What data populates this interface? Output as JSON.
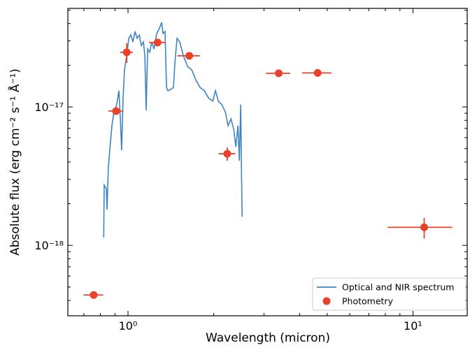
{
  "chart_data": {
    "type": "combo",
    "xlabel": "Wavelength (micron)",
    "ylabel": "Absolute flux (erg cm⁻² s⁻¹ Å⁻¹)",
    "xscale": "log",
    "yscale": "log",
    "xlim": [
      0.615,
      15.5
    ],
    "ylim": [
      3.1e-19,
      5.15e-17
    ],
    "xticks": [
      {
        "value": 1,
        "label": "10⁰"
      },
      {
        "value": 10,
        "label": "10¹"
      }
    ],
    "yticks": [
      {
        "value": 1e-18,
        "label": "10⁻¹⁸"
      },
      {
        "value": 1e-17,
        "label": "10⁻¹⁷"
      }
    ],
    "xminorticks": [
      0.7,
      0.8,
      0.9,
      2,
      3,
      4,
      5,
      6,
      7,
      8,
      9
    ],
    "yminorticks": [
      4e-19,
      5e-19,
      6e-19,
      7e-19,
      8e-19,
      9e-19,
      2e-18,
      3e-18,
      4e-18,
      5e-18,
      6e-18,
      7e-18,
      8e-18,
      9e-18,
      2e-17,
      3e-17,
      4e-17,
      5e-17
    ],
    "legend": "lower right",
    "series": [
      {
        "name": "Optical and NIR spectrum",
        "type": "line",
        "color": "#3f84c2",
        "x": [
          0.822,
          0.825,
          0.839,
          0.844,
          0.853,
          0.863,
          0.878,
          0.893,
          0.913,
          0.929,
          0.94,
          0.95,
          0.961,
          0.972,
          0.989,
          1.006,
          1.023,
          1.04,
          1.058,
          1.076,
          1.095,
          1.114,
          1.133,
          1.146,
          1.158,
          1.172,
          1.192,
          1.212,
          1.233,
          1.261,
          1.29,
          1.312,
          1.327,
          1.349,
          1.365,
          1.38,
          1.412,
          1.444,
          1.461,
          1.486,
          1.519,
          1.564,
          1.618,
          1.674,
          1.731,
          1.791,
          1.853,
          1.917,
          1.983,
          2.028,
          2.075,
          2.134,
          2.195,
          2.246,
          2.298,
          2.35,
          2.39,
          2.431,
          2.459,
          2.487,
          2.5,
          2.515
        ],
        "y": [
          1.14e-18,
          2.72e-18,
          2.56e-18,
          1.81e-18,
          3.64e-18,
          4.86e-18,
          7.31e-18,
          9.22e-18,
          1.04e-17,
          1.31e-17,
          8.2e-18,
          4.86e-18,
          1.16e-17,
          1.85e-17,
          2.34e-17,
          3.13e-17,
          3.31e-17,
          2.95e-17,
          3.51e-17,
          3.13e-17,
          3.31e-17,
          2.78e-17,
          2.95e-17,
          2.34e-17,
          9.44e-18,
          2.62e-17,
          2.48e-17,
          2.95e-17,
          2.62e-17,
          3.39e-17,
          3.72e-17,
          4.08e-17,
          3.39e-17,
          3.51e-17,
          1.38e-17,
          1.31e-17,
          1.34e-17,
          1.38e-17,
          2.08e-17,
          3.13e-17,
          2.95e-17,
          2.34e-17,
          1.96e-17,
          1.85e-17,
          1.56e-17,
          1.38e-17,
          1.31e-17,
          1.16e-17,
          1.1e-17,
          1.31e-17,
          1.1e-17,
          1.04e-17,
          9.22e-18,
          7.31e-18,
          8.2e-18,
          6.89e-18,
          5.15e-18,
          7.31e-18,
          4.08e-18,
          1.04e-17,
          3.64e-18,
          1.61e-18
        ]
      },
      {
        "name": "Photometry",
        "type": "errorbar",
        "color": "#e8432a",
        "x": [
          0.758,
          0.908,
          0.99,
          1.27,
          1.64,
          2.23,
          3.38,
          4.63,
          10.95
        ],
        "xerr": [
          0.06,
          0.055,
          0.05,
          0.085,
          0.15,
          0.15,
          0.33,
          0.55,
          2.8
        ],
        "y": [
          4.38e-19,
          9.33e-18,
          2.48e-17,
          2.92e-17,
          2.34e-17,
          4.59e-18,
          1.75e-17,
          1.76e-17,
          1.35e-18
        ],
        "yerr": [
          null,
          null,
          4e-18,
          null,
          null,
          5e-19,
          null,
          null,
          2.3e-19
        ]
      }
    ]
  }
}
